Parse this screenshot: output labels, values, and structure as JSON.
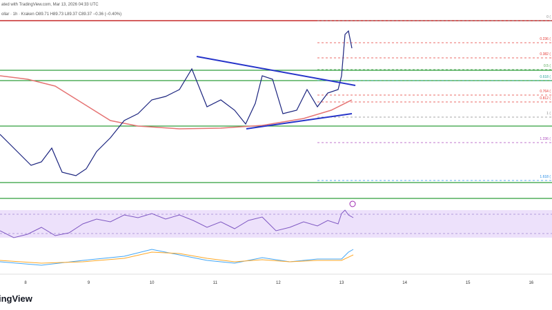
{
  "header": {
    "line1": "ated with TradingView.com, Mar 13, 2026 04:33 UTC",
    "line2": "ollar · 1h · Kraken  O89.71  H89.73  L89.37  C89.37  −0.36 (−0.40%)"
  },
  "fib_levels": [
    "0 (",
    "0.236 (",
    "0.382 (",
    "0.5 (",
    "0.618 (",
    "0.764 (",
    "0.812 (",
    "1 (",
    "1.236 (",
    "1.618 ("
  ],
  "dates": [
    "8",
    "9",
    "10",
    "11",
    "12",
    "13",
    "14",
    "15",
    "16"
  ],
  "footer": {
    "logo": "ingView"
  }
}
